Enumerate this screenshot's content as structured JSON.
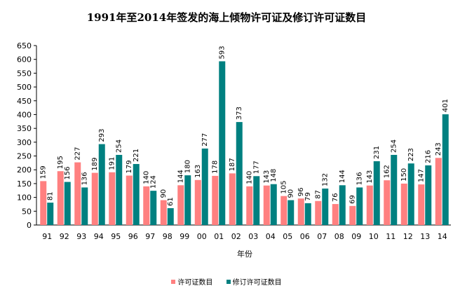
{
  "chart_data": {
    "type": "bar",
    "title": "1991年至2014年签发的海上倾物许可证及修订许可证数目",
    "xlabel": "年份",
    "ylabel": "",
    "ylim": [
      0,
      650
    ],
    "yticks": [
      0,
      50,
      100,
      150,
      200,
      250,
      300,
      350,
      400,
      450,
      500,
      550,
      600,
      650
    ],
    "categories": [
      "91",
      "92",
      "93",
      "94",
      "95",
      "96",
      "97",
      "98",
      "99",
      "00",
      "01",
      "02",
      "03",
      "04",
      "05",
      "06",
      "07",
      "08",
      "09",
      "10",
      "11",
      "12",
      "13",
      "14"
    ],
    "series": [
      {
        "name": "许可证数目",
        "color": "#FF8080",
        "values": [
          159,
          195,
          227,
          189,
          191,
          179,
          140,
          90,
          144,
          163,
          178,
          187,
          140,
          143,
          105,
          96,
          87,
          76,
          69,
          143,
          162,
          150,
          147,
          243
        ]
      },
      {
        "name": "修订许可证数目",
        "color": "#008080",
        "values": [
          81,
          156,
          136,
          293,
          254,
          221,
          124,
          61,
          180,
          277,
          593,
          373,
          177,
          148,
          90,
          79,
          132,
          144,
          136,
          231,
          254,
          223,
          216,
          401
        ]
      }
    ],
    "legend": "bottom",
    "grid": false
  }
}
